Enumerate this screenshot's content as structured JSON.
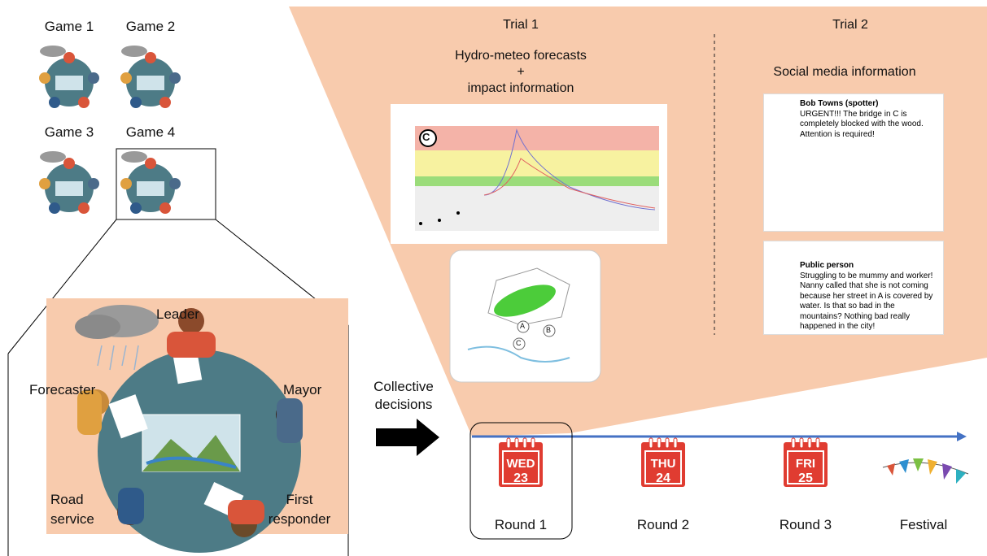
{
  "games": [
    "Game 1",
    "Game 2",
    "Game 3",
    "Game 4"
  ],
  "roles": {
    "leader": "Leader",
    "forecaster": "Forecaster",
    "mayor": "Mayor",
    "road_service": "Road service",
    "first_responder": "First responder"
  },
  "arrow_label": "Collective decisions",
  "trial1": {
    "title": "Trial 1",
    "subtitle": [
      "Hydro-meteo forecasts",
      "+",
      "impact information"
    ],
    "chart_label": "C",
    "map_labels": [
      "A",
      "B",
      "C"
    ]
  },
  "trial2": {
    "title": "Trial 2",
    "subtitle": "Social media information",
    "posts": [
      {
        "author": "Bob Towns (spotter)",
        "text": "URGENT!!! The bridge in C is completely blocked with the wood. Attention is required!"
      },
      {
        "author": "Public person",
        "text": "Struggling to be mummy and worker! Nanny called that she is not coming because her street in A is covered by water. Is that so bad in the mountains? Nothing bad really happened in the city!"
      }
    ]
  },
  "timeline": {
    "rounds": [
      {
        "day": "WED",
        "date": "23",
        "label": "Round 1"
      },
      {
        "day": "THU",
        "date": "24",
        "label": "Round 2"
      },
      {
        "day": "FRI",
        "date": "25",
        "label": "Round 3"
      }
    ],
    "end_label": "Festival"
  }
}
